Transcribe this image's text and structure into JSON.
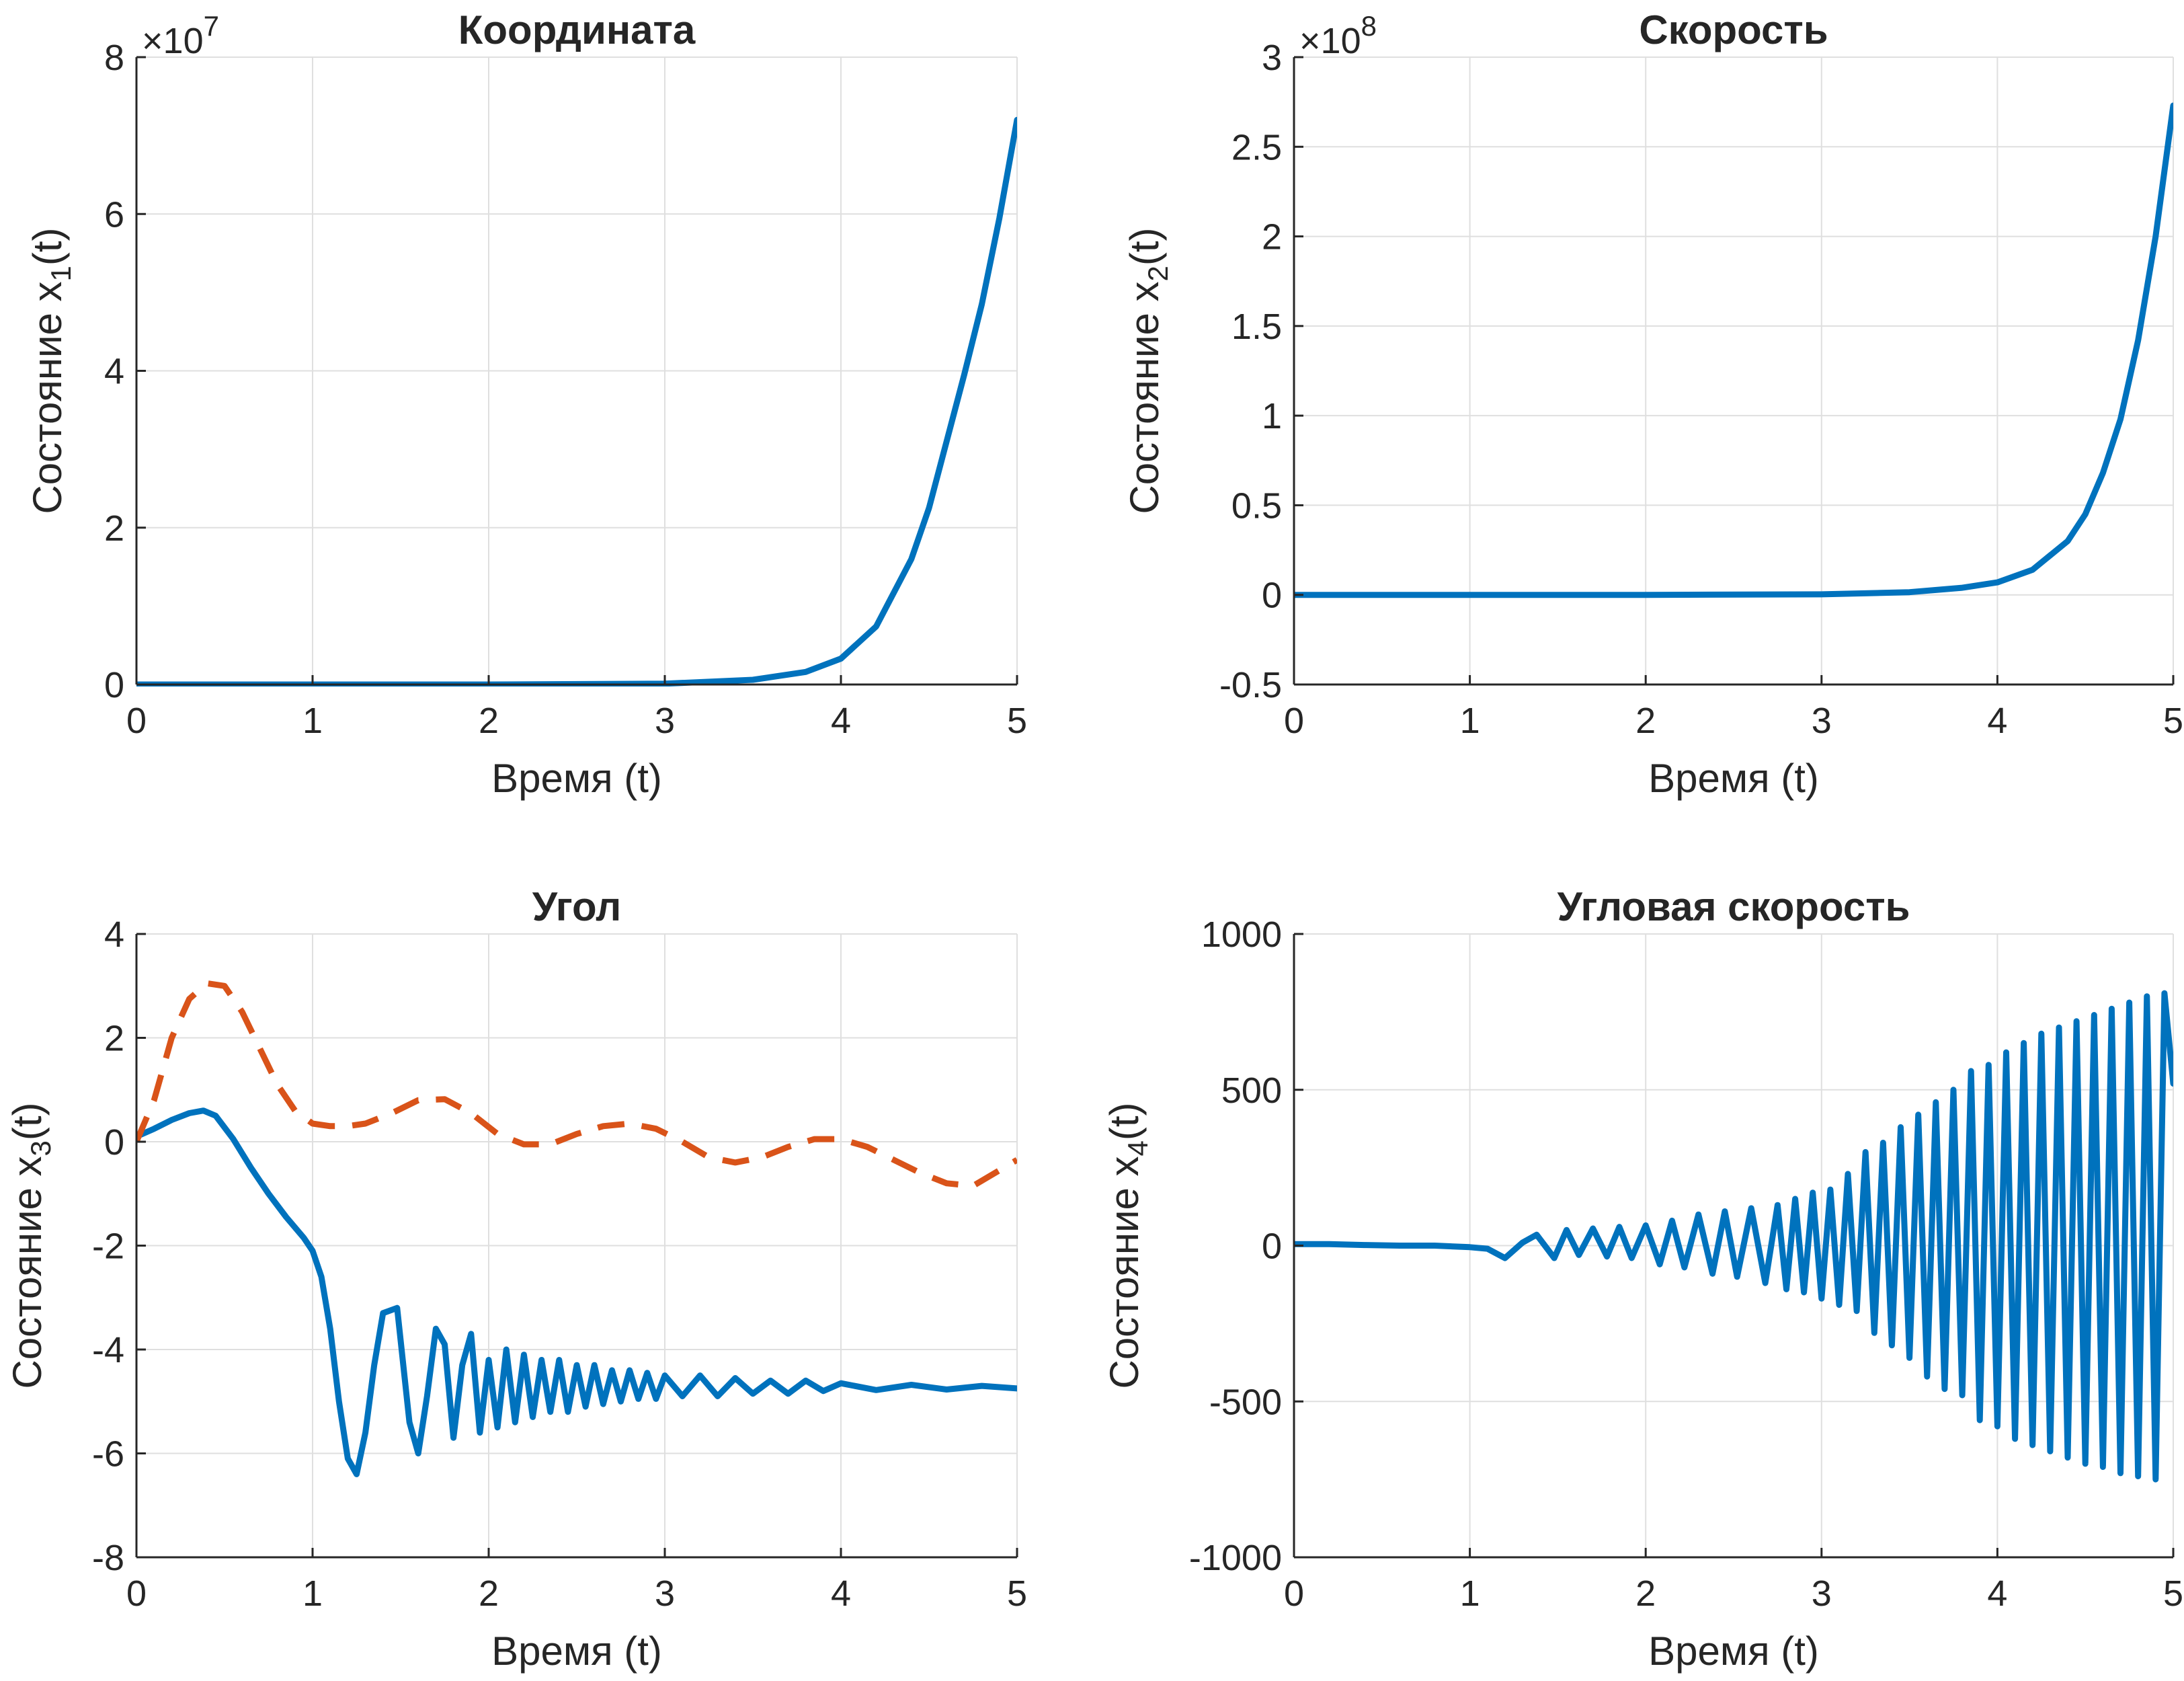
{
  "colors": {
    "blue": "#0072bd",
    "orange": "#d95319",
    "grid": "#dfdfdf",
    "axis": "#262626"
  },
  "chart_data": [
    {
      "type": "line",
      "title": "Координата",
      "xlabel": "Время (t)",
      "ylabel": {
        "main": "Состояние x",
        "sub": "1",
        "tail": "(t)"
      },
      "multiplier": {
        "prefix": "×10",
        "exp": "7"
      },
      "xlim": [
        0,
        5
      ],
      "ylim": [
        0,
        8
      ],
      "xticks": [
        "0",
        "1",
        "2",
        "3",
        "4",
        "5"
      ],
      "yticks": [
        "0",
        "2",
        "4",
        "6",
        "8"
      ],
      "grid": true,
      "series": [
        {
          "color": "#0072bd",
          "style": "solid",
          "x": [
            0,
            1,
            2,
            3,
            3.5,
            3.8,
            4.0,
            4.2,
            4.4,
            4.5,
            4.6,
            4.7,
            4.8,
            4.9,
            5.0
          ],
          "y": [
            0,
            0,
            0,
            0.01,
            0.06,
            0.16,
            0.33,
            0.74,
            1.6,
            2.25,
            3.1,
            3.95,
            4.85,
            5.95,
            7.2
          ]
        }
      ]
    },
    {
      "type": "line",
      "title": "Скорость",
      "xlabel": "Время (t)",
      "ylabel": {
        "main": "Состояние x",
        "sub": "2",
        "tail": "(t)"
      },
      "multiplier": {
        "prefix": "×10",
        "exp": "8"
      },
      "xlim": [
        0,
        5
      ],
      "ylim": [
        -0.5,
        3
      ],
      "xticks": [
        "0",
        "1",
        "2",
        "3",
        "4",
        "5"
      ],
      "yticks": [
        "-0.5",
        "0",
        "0.5",
        "1",
        "1.5",
        "2",
        "2.5",
        "3"
      ],
      "grid": true,
      "series": [
        {
          "color": "#0072bd",
          "style": "solid",
          "x": [
            0,
            1,
            2,
            3,
            3.5,
            3.8,
            4.0,
            4.2,
            4.4,
            4.5,
            4.6,
            4.7,
            4.8,
            4.9,
            5.0
          ],
          "y": [
            0,
            0,
            0,
            0.003,
            0.015,
            0.04,
            0.07,
            0.14,
            0.3,
            0.45,
            0.68,
            0.98,
            1.42,
            2.0,
            2.73
          ]
        }
      ]
    },
    {
      "type": "line",
      "title": "Угол",
      "xlabel": "Время (t)",
      "ylabel": {
        "main": "Состояние x",
        "sub": "3",
        "tail": "(t)"
      },
      "xlim": [
        0,
        5
      ],
      "ylim": [
        -8,
        4
      ],
      "xticks": [
        "0",
        "1",
        "2",
        "3",
        "4",
        "5"
      ],
      "yticks": [
        "-8",
        "-6",
        "-4",
        "-2",
        "0",
        "2",
        "4"
      ],
      "grid": true,
      "series": [
        {
          "color": "#0072bd",
          "style": "solid",
          "x": [
            0,
            0.1,
            0.2,
            0.3,
            0.38,
            0.45,
            0.55,
            0.65,
            0.75,
            0.85,
            0.95,
            1.0,
            1.05,
            1.1,
            1.15,
            1.2,
            1.25,
            1.3,
            1.35,
            1.4,
            1.48,
            1.55,
            1.6,
            1.65,
            1.7,
            1.75,
            1.8,
            1.85,
            1.9,
            1.95,
            2.0,
            2.05,
            2.1,
            2.15,
            2.2,
            2.25,
            2.3,
            2.35,
            2.4,
            2.45,
            2.5,
            2.55,
            2.6,
            2.65,
            2.7,
            2.75,
            2.8,
            2.85,
            2.9,
            2.95,
            3.0,
            3.1,
            3.2,
            3.3,
            3.4,
            3.5,
            3.6,
            3.7,
            3.8,
            3.9,
            4.0,
            4.2,
            4.4,
            4.6,
            4.8,
            5.0
          ],
          "y": [
            0.1,
            0.25,
            0.42,
            0.55,
            0.6,
            0.5,
            0.05,
            -0.5,
            -1.0,
            -1.45,
            -1.85,
            -2.1,
            -2.6,
            -3.6,
            -5.0,
            -6.1,
            -6.4,
            -5.6,
            -4.3,
            -3.3,
            -3.2,
            -5.4,
            -6.0,
            -4.9,
            -3.6,
            -3.9,
            -5.7,
            -4.3,
            -3.7,
            -5.6,
            -4.2,
            -5.5,
            -4.0,
            -5.4,
            -4.1,
            -5.3,
            -4.2,
            -5.2,
            -4.2,
            -5.2,
            -4.3,
            -5.1,
            -4.3,
            -5.05,
            -4.4,
            -5.0,
            -4.4,
            -4.95,
            -4.45,
            -4.95,
            -4.5,
            -4.9,
            -4.5,
            -4.9,
            -4.55,
            -4.85,
            -4.6,
            -4.85,
            -4.6,
            -4.8,
            -4.65,
            -4.78,
            -4.68,
            -4.77,
            -4.7,
            -4.75
          ]
        },
        {
          "color": "#d95319",
          "style": "dashed",
          "x": [
            0,
            0.1,
            0.2,
            0.3,
            0.4,
            0.5,
            0.6,
            0.7,
            0.8,
            0.9,
            1.0,
            1.1,
            1.2,
            1.3,
            1.45,
            1.6,
            1.75,
            1.9,
            2.05,
            2.2,
            2.35,
            2.5,
            2.65,
            2.8,
            2.95,
            3.1,
            3.25,
            3.4,
            3.55,
            3.7,
            3.85,
            4.0,
            4.15,
            4.3,
            4.45,
            4.6,
            4.75,
            4.9,
            5.0
          ],
          "y": [
            0.0,
            0.8,
            2.0,
            2.75,
            3.05,
            3.0,
            2.5,
            1.8,
            1.1,
            0.6,
            0.35,
            0.3,
            0.3,
            0.35,
            0.55,
            0.8,
            0.82,
            0.55,
            0.15,
            -0.05,
            -0.05,
            0.15,
            0.3,
            0.35,
            0.25,
            0.0,
            -0.3,
            -0.4,
            -0.3,
            -0.1,
            0.05,
            0.05,
            -0.1,
            -0.35,
            -0.6,
            -0.8,
            -0.85,
            -0.55,
            -0.35
          ]
        }
      ]
    },
    {
      "type": "line",
      "title": "Угловая скорость",
      "xlabel": "Время (t)",
      "ylabel": {
        "main": "Состояние x",
        "sub": "4",
        "tail": "(t)"
      },
      "xlim": [
        0,
        5
      ],
      "ylim": [
        -1000,
        1000
      ],
      "xticks": [
        "0",
        "1",
        "2",
        "3",
        "4",
        "5"
      ],
      "yticks": [
        "-1000",
        "-500",
        "0",
        "500",
        "1000"
      ],
      "grid": true,
      "series": [
        {
          "color": "#0072bd",
          "style": "solid",
          "x": [
            0,
            0.2,
            0.4,
            0.6,
            0.8,
            1.0,
            1.1,
            1.2,
            1.3,
            1.38,
            1.48,
            1.55,
            1.62,
            1.7,
            1.78,
            1.85,
            1.92,
            2.0,
            2.08,
            2.15,
            2.22,
            2.3,
            2.38,
            2.45,
            2.52,
            2.6,
            2.68,
            2.75,
            2.8,
            2.85,
            2.9,
            2.95,
            3.0,
            3.05,
            3.1,
            3.15,
            3.2,
            3.25,
            3.3,
            3.35,
            3.4,
            3.45,
            3.5,
            3.55,
            3.6,
            3.65,
            3.7,
            3.75,
            3.8,
            3.85,
            3.9,
            3.95,
            4.0,
            4.05,
            4.1,
            4.15,
            4.2,
            4.25,
            4.3,
            4.35,
            4.4,
            4.45,
            4.5,
            4.55,
            4.6,
            4.65,
            4.7,
            4.75,
            4.8,
            4.85,
            4.9,
            4.95,
            5.0
          ],
          "y": [
            5,
            5,
            2,
            0,
            0,
            -5,
            -10,
            -40,
            10,
            35,
            -40,
            50,
            -30,
            55,
            -35,
            60,
            -40,
            65,
            -60,
            80,
            -70,
            100,
            -90,
            110,
            -100,
            120,
            -120,
            130,
            -140,
            150,
            -150,
            170,
            -170,
            180,
            -190,
            230,
            -210,
            300,
            -280,
            330,
            -320,
            380,
            -360,
            420,
            -420,
            460,
            -460,
            500,
            -480,
            560,
            -560,
            580,
            -580,
            620,
            -620,
            650,
            -640,
            680,
            -660,
            700,
            -680,
            720,
            -700,
            740,
            -710,
            760,
            -730,
            780,
            -740,
            800,
            -750,
            810,
            520
          ]
        }
      ]
    }
  ]
}
